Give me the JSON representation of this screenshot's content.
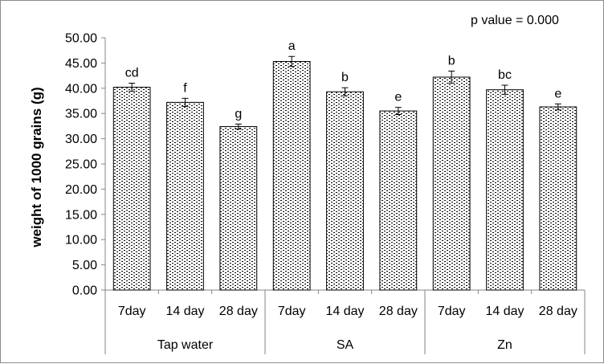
{
  "chart_data": {
    "type": "bar",
    "title": "",
    "annotation": "p value = 0.000",
    "xlabel": "",
    "ylabel": "weight of 1000 grains (g)",
    "ylim": [
      0,
      50
    ],
    "ytick_step": 5,
    "ytick_labels": [
      "0.00",
      "5.00",
      "10.00",
      "15.00",
      "20.00",
      "25.00",
      "30.00",
      "35.00",
      "40.00",
      "45.00",
      "50.00"
    ],
    "groups": [
      {
        "name": "Tap water",
        "bars": [
          {
            "label": "7day",
            "value": 40.2,
            "error": 0.8,
            "sig": "cd"
          },
          {
            "label": "14 day",
            "value": 37.2,
            "error": 0.8,
            "sig": "f"
          },
          {
            "label": "28 day",
            "value": 32.4,
            "error": 0.5,
            "sig": "g"
          }
        ]
      },
      {
        "name": "SA",
        "bars": [
          {
            "label": "7day",
            "value": 45.3,
            "error": 1.0,
            "sig": "a"
          },
          {
            "label": "14 day",
            "value": 39.3,
            "error": 0.8,
            "sig": "b"
          },
          {
            "label": "28 day",
            "value": 35.5,
            "error": 0.7,
            "sig": "e"
          }
        ]
      },
      {
        "name": "Zn",
        "bars": [
          {
            "label": "7day",
            "value": 42.2,
            "error": 1.2,
            "sig": "b"
          },
          {
            "label": "14 day",
            "value": 39.7,
            "error": 0.9,
            "sig": "bc"
          },
          {
            "label": "28 day",
            "value": 36.3,
            "error": 0.6,
            "sig": "e"
          }
        ]
      }
    ],
    "bar_fill_pattern": "dotted",
    "colors": {
      "bar_border": "#000000",
      "bar_pattern_dot": "#000000",
      "bar_background": "#ffffff",
      "axis": "#868686",
      "text": "#000000",
      "frame": "#8c8c8c"
    },
    "grid": false,
    "legend": "none"
  }
}
